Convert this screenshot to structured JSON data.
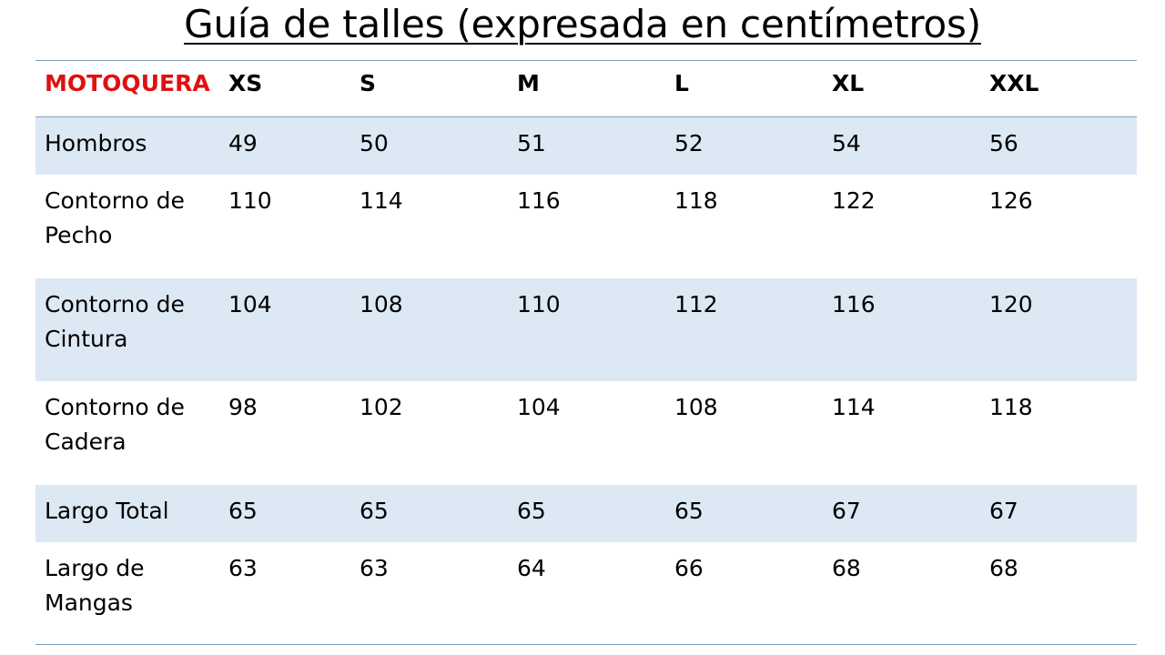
{
  "title": "Guía de talles (expresada en centímetros)",
  "table": {
    "header": {
      "product": "MOTOQUERA",
      "sizes": [
        "XS",
        "S",
        "M",
        "L",
        "XL",
        "XXL"
      ]
    },
    "rows": [
      {
        "label": "Hombros",
        "values": [
          "49",
          "50",
          "51",
          "52",
          "54",
          "56"
        ]
      },
      {
        "label": "Contorno de Pecho",
        "values": [
          "110",
          "114",
          "116",
          "118",
          "122",
          "126"
        ]
      },
      {
        "label": "Contorno de Cintura",
        "values": [
          "104",
          "108",
          "110",
          "112",
          "116",
          "120"
        ]
      },
      {
        "label": "Contorno de Cadera",
        "values": [
          "98",
          "102",
          "104",
          "108",
          "114",
          "118"
        ]
      },
      {
        "label": "Largo Total",
        "values": [
          "65",
          "65",
          "65",
          "65",
          "67",
          "67"
        ]
      },
      {
        "label": "Largo de Mangas",
        "values": [
          "63",
          "63",
          "64",
          "66",
          "68",
          "68"
        ]
      }
    ]
  },
  "colors": {
    "brand": "#e01010",
    "row_shade": "#dde8f5",
    "rule": "#7aa0c4"
  }
}
